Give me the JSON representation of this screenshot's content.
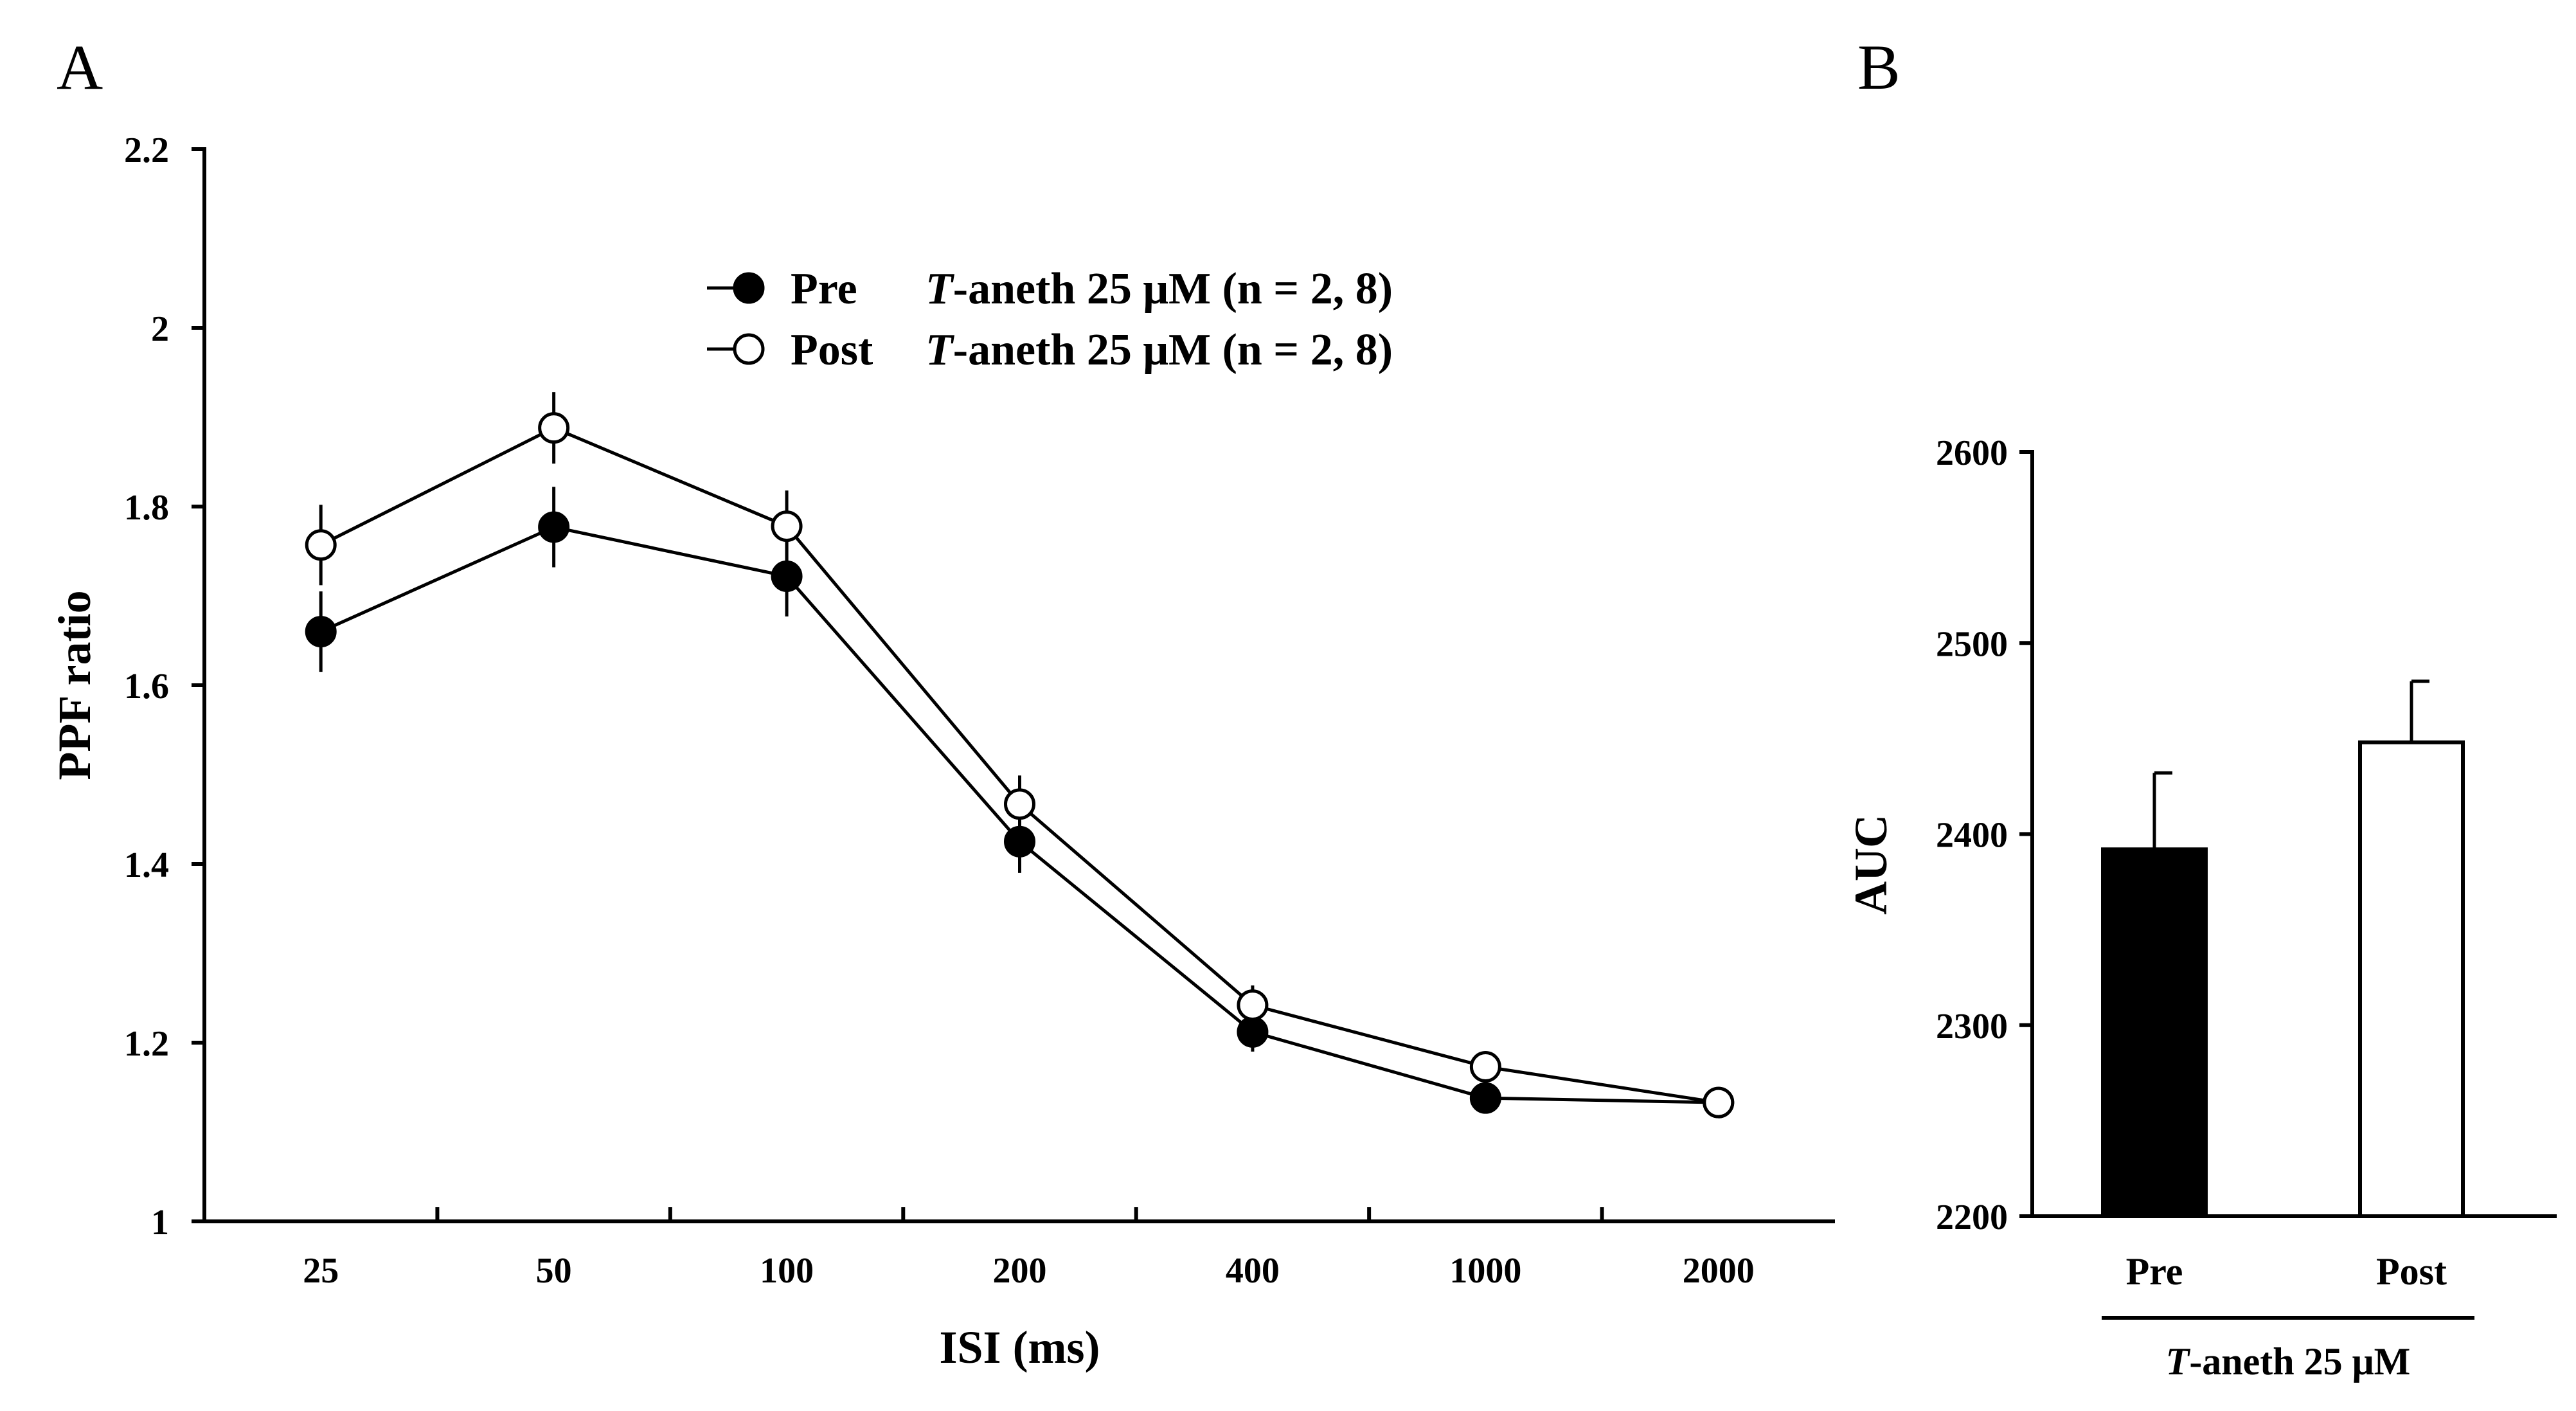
{
  "chart_data": [
    {
      "panel": "A",
      "type": "line",
      "title": "",
      "xlabel": "ISI (ms)",
      "ylabel": "PPF ratio",
      "categories": [
        "25",
        "50",
        "100",
        "200",
        "400",
        "1000",
        "2000"
      ],
      "ylim": [
        1,
        2.2
      ],
      "yticks": [
        "1",
        "1.2",
        "1.4",
        "1.6",
        "1.8",
        "2",
        "2.2"
      ],
      "legend_position": "top-center",
      "series": [
        {
          "name": "Pre",
          "legend_parts": [
            "Pre",
            "T",
            "-aneth 25 μM (n = 2, 8)"
          ],
          "marker": "filled-circle",
          "values": [
            1.66,
            1.777,
            1.722,
            1.425,
            1.212,
            1.138,
            1.133
          ],
          "errors": [
            0.045,
            0.045,
            0.045,
            0.035,
            0.022,
            0.0,
            0.0
          ]
        },
        {
          "name": "Post",
          "legend_parts": [
            "Post",
            "T",
            "-aneth 25 μM (n = 2, 8)"
          ],
          "marker": "open-circle",
          "values": [
            1.757,
            1.888,
            1.778,
            1.467,
            1.242,
            1.173,
            1.133
          ],
          "errors": [
            0.045,
            0.04,
            0.04,
            0.032,
            0.022,
            0.0,
            0.0
          ]
        }
      ]
    },
    {
      "panel": "B",
      "type": "bar",
      "title": "",
      "xlabel_parts": [
        "T",
        "-aneth 25 μM"
      ],
      "ylabel": "AUC",
      "categories": [
        "Pre",
        "Post"
      ],
      "values": [
        2392,
        2448
      ],
      "errors": [
        40,
        32
      ],
      "colors": [
        "#000000",
        "#ffffff"
      ],
      "ylim": [
        2200,
        2600
      ],
      "yticks": [
        "2200",
        "2300",
        "2400",
        "2500",
        "2600"
      ]
    }
  ]
}
